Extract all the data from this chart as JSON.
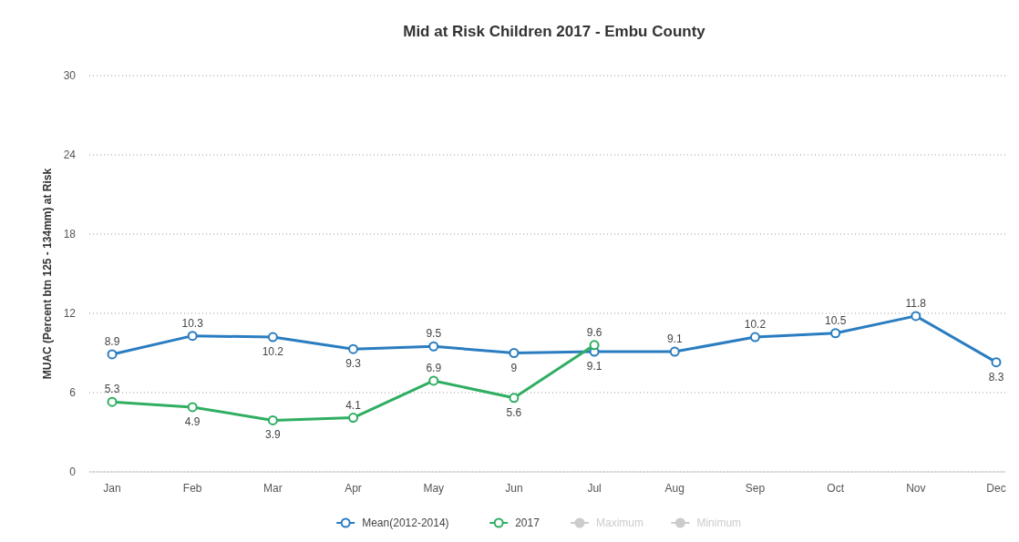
{
  "chart_data": {
    "type": "line",
    "title": "Mid at Risk Children 2017 - Embu County",
    "ylabel": "MUAC (Percent btn 125 - 134mm) at Risk",
    "categories": [
      "Jan",
      "Feb",
      "Mar",
      "Apr",
      "May",
      "Jun",
      "Jul",
      "Aug",
      "Sep",
      "Oct",
      "Nov",
      "Dec"
    ],
    "series": [
      {
        "name": "Mean(2012-2014)",
        "color": "#2a7dc0",
        "values": [
          8.9,
          10.3,
          10.2,
          9.3,
          9.5,
          9,
          9.1,
          9.1,
          10.2,
          10.5,
          11.8,
          8.3
        ]
      },
      {
        "name": "2017",
        "color": "#2fae62",
        "values": [
          5.3,
          4.9,
          3.9,
          4.1,
          6.9,
          5.6,
          9.6,
          null,
          null,
          null,
          null,
          null
        ]
      },
      {
        "name": "Maximum",
        "color": "#cccccc",
        "values": [
          null,
          null,
          null,
          null,
          null,
          null,
          null,
          null,
          null,
          null,
          null,
          null
        ]
      },
      {
        "name": "Minimum",
        "color": "#cccccc",
        "values": [
          null,
          null,
          null,
          null,
          null,
          null,
          null,
          null,
          null,
          null,
          null,
          null
        ]
      }
    ],
    "ylim": [
      0,
      30
    ],
    "yticks": [
      0,
      6,
      12,
      18,
      24,
      30
    ],
    "grid": "y",
    "legend": "bottom",
    "marker": "circle",
    "data_labels": true
  }
}
